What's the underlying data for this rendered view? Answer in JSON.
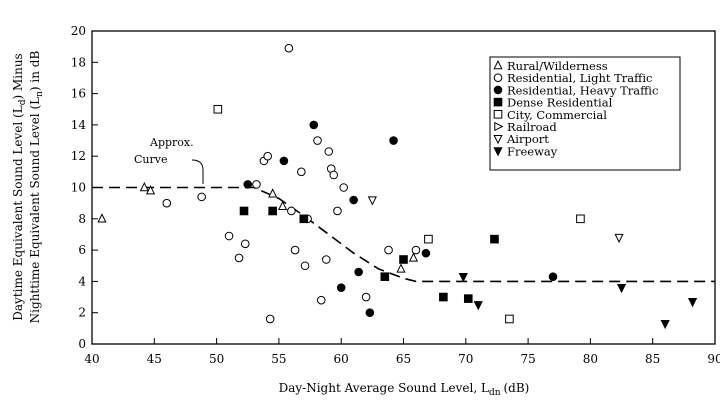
{
  "chart_data": {
    "type": "scatter",
    "xlabel": "Day-Night Average Sound Level, L",
    "xlabel_sub": "dn",
    "xlabel_unit": "(dB)",
    "ylabel_line1": "Daytime Equivalent Sound Level (L",
    "ylabel_line1_sub": "d",
    "ylabel_line1_end": ") Minus",
    "ylabel_line2": "Nighttime Equivalent Sound Level (L",
    "ylabel_line2_sub": "n",
    "ylabel_line2_end": ") in dB",
    "xlim": [
      40,
      90
    ],
    "ylim": [
      0,
      20
    ],
    "xticks": [
      40,
      45,
      50,
      55,
      60,
      65,
      70,
      75,
      80,
      85,
      90
    ],
    "yticks": [
      0,
      2,
      4,
      6,
      8,
      10,
      12,
      14,
      16,
      18,
      20
    ],
    "grid": false,
    "legend_position": "top-right",
    "annotation": {
      "line1": "Approx.",
      "line2": "Curve"
    },
    "approx_curve": {
      "x": [
        40,
        53,
        55,
        57,
        59,
        61,
        63,
        65,
        66,
        90
      ],
      "y": [
        10,
        10,
        9.3,
        8.2,
        7.0,
        5.8,
        4.8,
        4.2,
        4.0,
        4.0
      ]
    },
    "series": [
      {
        "name": "Rural/Wilderness",
        "marker": "triangle-up-open",
        "x": [
          40.8,
          44.2,
          44.7,
          54.5,
          55.3,
          64.8,
          65.8
        ],
        "y": [
          8.0,
          10.0,
          9.8,
          9.6,
          8.8,
          4.8,
          5.5
        ]
      },
      {
        "name": "Residential, Light Traffic",
        "marker": "circle-open",
        "x": [
          46,
          48.8,
          51,
          51.8,
          52.3,
          53.2,
          53.8,
          54.1,
          54.3,
          55.8,
          56.0,
          56.3,
          56.8,
          57.1,
          57.3,
          58.1,
          58.4,
          58.8,
          59.0,
          59.2,
          59.4,
          59.7,
          60.2,
          62.0,
          63.8,
          66.0
        ],
        "y": [
          9.0,
          9.4,
          6.9,
          5.5,
          6.4,
          10.2,
          11.7,
          12.0,
          1.6,
          18.9,
          8.5,
          6.0,
          11.0,
          5.0,
          8.0,
          13.0,
          2.8,
          5.4,
          12.3,
          11.2,
          10.8,
          8.5,
          10.0,
          3.0,
          6.0,
          6.0
        ]
      },
      {
        "name": "Residential, Heavy Traffic",
        "marker": "circle-filled",
        "x": [
          52.5,
          55.4,
          57.8,
          60.0,
          61.0,
          61.4,
          62.3,
          64.2,
          66.8,
          77.0
        ],
        "y": [
          10.2,
          11.7,
          14.0,
          3.6,
          9.2,
          4.6,
          2.0,
          13.0,
          5.8,
          4.3
        ]
      },
      {
        "name": "Dense Residential",
        "marker": "square-filled",
        "x": [
          52.2,
          54.5,
          57.0,
          63.5,
          65.0,
          68.2,
          70.2,
          72.3
        ],
        "y": [
          8.5,
          8.5,
          8.0,
          4.3,
          5.4,
          3.0,
          2.9,
          6.7
        ]
      },
      {
        "name": "City, Commercial",
        "marker": "square-open",
        "x": [
          50.1,
          67.0,
          73.5,
          79.2
        ],
        "y": [
          15.0,
          6.7,
          1.6,
          8.0
        ]
      },
      {
        "name": "Railroad",
        "marker": "triangle-right-open",
        "x": [],
        "y": []
      },
      {
        "name": "Airport",
        "marker": "triangle-down-open",
        "x": [
          62.5,
          82.3
        ],
        "y": [
          9.2,
          6.8
        ]
      },
      {
        "name": "Freeway",
        "marker": "triangle-down-filled",
        "x": [
          69.8,
          71.0,
          82.5,
          86.0,
          88.2
        ],
        "y": [
          4.3,
          2.5,
          3.6,
          1.3,
          2.7
        ]
      }
    ]
  }
}
